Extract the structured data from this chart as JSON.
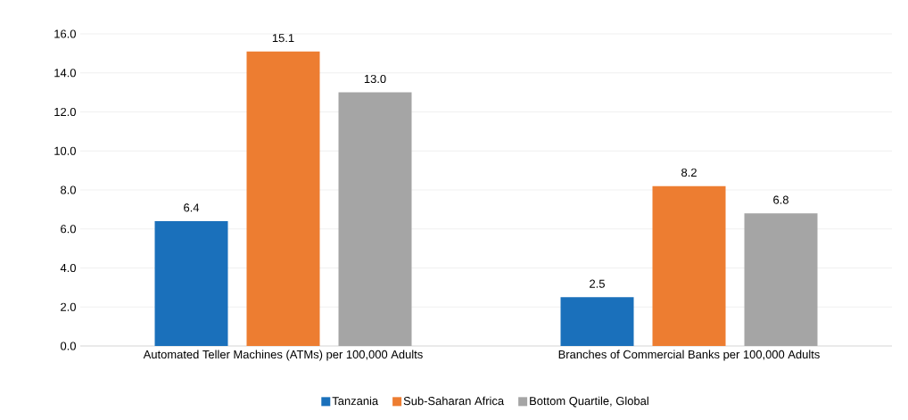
{
  "chart_data": {
    "type": "bar",
    "categories": [
      "Automated Teller Machines (ATMs) per 100,000 Adults",
      "Branches of Commercial Banks per 100,000 Adults"
    ],
    "series": [
      {
        "name": "Tanzania",
        "color": "#1a70bb",
        "values": [
          6.4,
          2.5
        ],
        "value_labels": [
          "6.4",
          "2.5"
        ]
      },
      {
        "name": "Sub-Saharan Africa",
        "color": "#ed7d31",
        "values": [
          15.1,
          8.2
        ],
        "value_labels": [
          "15.1",
          "8.2"
        ]
      },
      {
        "name": "Bottom Quartile, Global",
        "color": "#a5a5a5",
        "values": [
          13.0,
          6.8
        ],
        "value_labels": [
          "13.0",
          "6.8"
        ]
      }
    ],
    "ylim": [
      0,
      16
    ],
    "yticks": [
      {
        "value": 0,
        "label": "0.0"
      },
      {
        "value": 2,
        "label": "2.0"
      },
      {
        "value": 4,
        "label": "4.0"
      },
      {
        "value": 6,
        "label": "6.0"
      },
      {
        "value": 8,
        "label": "8.0"
      },
      {
        "value": 10,
        "label": "10.0"
      },
      {
        "value": 12,
        "label": "12.0"
      },
      {
        "value": 14,
        "label": "14.0"
      },
      {
        "value": 16,
        "label": "16.0"
      }
    ],
    "grid": "y",
    "legend": "bottom"
  }
}
